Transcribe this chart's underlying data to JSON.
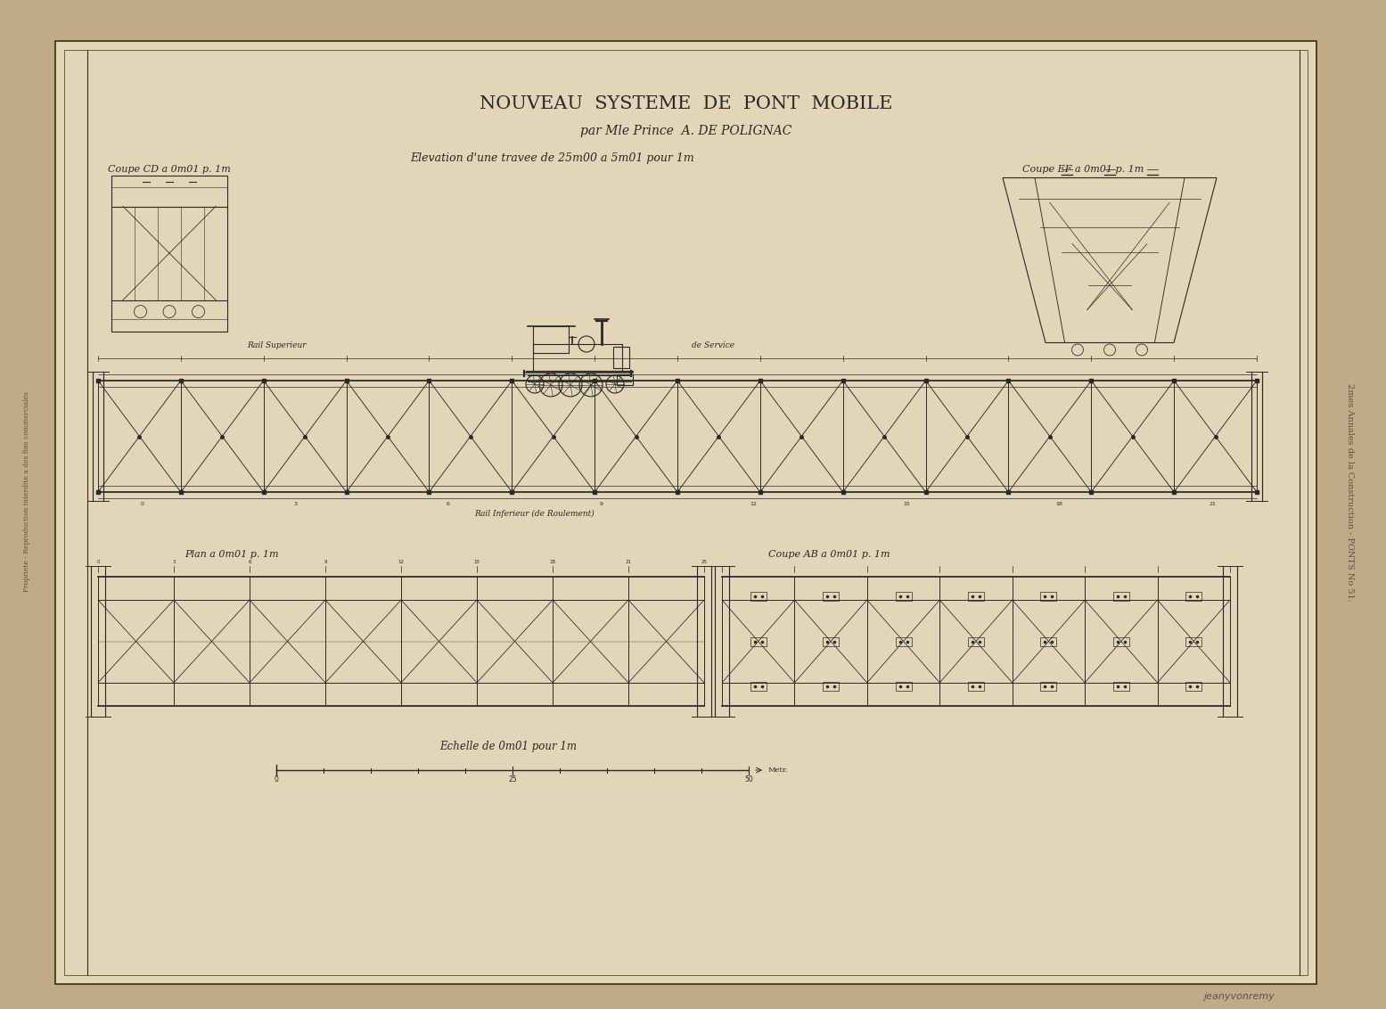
{
  "title_main": "NOUVEAU  SYSTEME  DE  PONT  MOBILE",
  "title_sub": "par Mle Prince  A. DE POLIGNAC",
  "elevation_label": "Elevation d'une travee de 25m00 a 5m01 pour 1m",
  "label_coupe_cd": "Coupe CD a 0m01 p. 1m",
  "label_coupe_ef": "Coupe EF a 0m01 p. 1m",
  "label_plan": "Plan a 0m01 p. 1m",
  "label_coupe_ab": "Coupe AB a 0m01 p. 1m",
  "label_echelle": "Echelle de 0m01 pour 1m",
  "label_rail_sup": "Rail Superieur",
  "label_de_service": "de Service",
  "label_rail_inf": "Rail Inferieur (de Roulement)",
  "sidebar_text": "2mes Annales de la Construction - PONTS No 51.",
  "watermark": "jeanyvonremy",
  "bg_color": "#c0aa88",
  "paper_color": "#e2d5b8",
  "ink_color": "#282828",
  "border_color": "#38300e"
}
